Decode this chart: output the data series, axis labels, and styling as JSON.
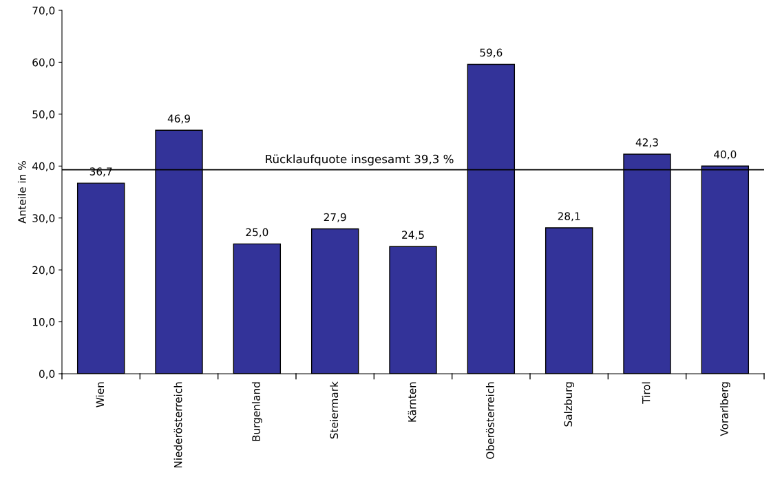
{
  "chart_data": {
    "type": "bar",
    "ylabel": "Anteile in %",
    "categories": [
      "Wien",
      "Niederösterreich",
      "Burgenland",
      "Steiermark",
      "Kärnten",
      "Oberösterreich",
      "Salzburg",
      "Tirol",
      "Vorarlberg"
    ],
    "values": [
      36.7,
      46.9,
      25.0,
      27.9,
      24.5,
      59.6,
      28.1,
      42.3,
      40.0
    ],
    "value_labels": [
      "36,7",
      "46,9",
      "25,0",
      "27,9",
      "24,5",
      "59,6",
      "28,1",
      "42,3",
      "40,0"
    ],
    "color": "#333399",
    "ylim": [
      0,
      70
    ],
    "yticks": [
      {
        "value": 0,
        "label": "0,0"
      },
      {
        "value": 10,
        "label": "10,0"
      },
      {
        "value": 20,
        "label": "20,0"
      },
      {
        "value": 30,
        "label": "30,0"
      },
      {
        "value": 40,
        "label": "40,0"
      },
      {
        "value": 50,
        "label": "50,0"
      },
      {
        "value": 60,
        "label": "60,0"
      },
      {
        "value": 70,
        "label": "70,0"
      }
    ],
    "ref_lines": [
      {
        "axis": "y",
        "value": 39.3,
        "label": "Rücklaufquote insgesamt 39,3 %",
        "color": "#000000"
      }
    ],
    "grid": false,
    "legend": false
  }
}
